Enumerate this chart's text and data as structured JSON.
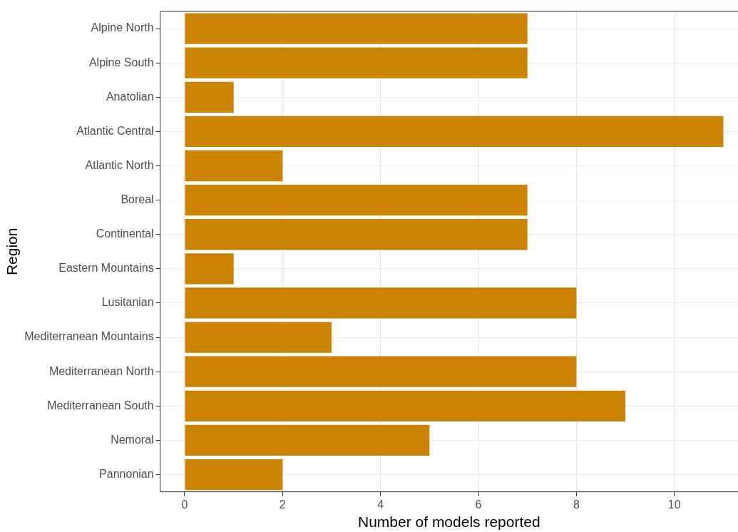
{
  "chart_data": {
    "type": "bar",
    "orientation": "horizontal",
    "xlabel": "Number of models reported",
    "ylabel": "Region",
    "categories": [
      "Alpine North",
      "Alpine South",
      "Anatolian",
      "Atlantic Central",
      "Atlantic North",
      "Boreal",
      "Continental",
      "Eastern Mountains",
      "Lusitanian",
      "Mediterranean Mountains",
      "Mediterranean North",
      "Mediterranean South",
      "Nemoral",
      "Pannonian"
    ],
    "values": [
      7,
      7,
      1,
      11,
      2,
      7,
      7,
      1,
      8,
      3,
      8,
      9,
      5,
      2
    ],
    "color": "#cc8400",
    "xlim": [
      -0.5,
      11.3
    ],
    "xticks": [
      0,
      2,
      4,
      6,
      8,
      10
    ],
    "grid": true
  }
}
